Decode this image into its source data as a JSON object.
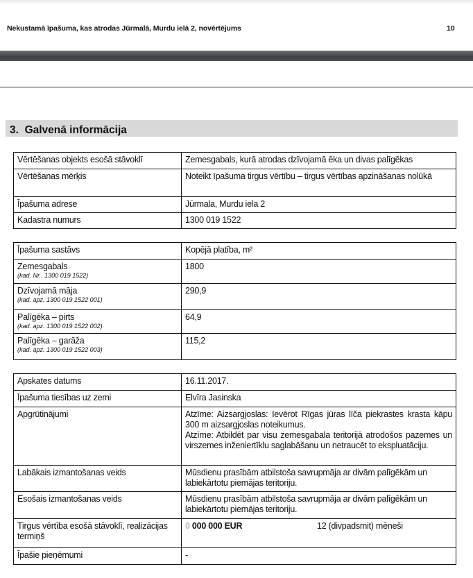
{
  "header": {
    "title": "Nekustamā īpašuma, kas atrodas Jūrmalā, Murdu ielā 2, novērtējums",
    "page_number": "10"
  },
  "section": {
    "number": "3.",
    "title": "Galvenā informācija"
  },
  "table1": [
    {
      "label": "Vērtēšanas objekts esošā stāvoklī",
      "value": "Zemesgabals, kurā atrodas dzīvojamā ēka un divas palīgēkas"
    },
    {
      "label": "Vērtēšanas mērķis",
      "value": "Noteikt īpašuma tirgus vērtību – tirgus vērtības apzināšanas nolūkā"
    },
    {
      "label": "Īpašuma adrese",
      "value": "Jūrmala, Murdu iela 2"
    },
    {
      "label": "Kadastra numurs",
      "value": "1300 019 1522"
    }
  ],
  "table2": {
    "header": {
      "label": "Īpašuma sastāvs",
      "value": "Kopējā platība, m²"
    },
    "rows": [
      {
        "label": "Zemesgabals",
        "sub": "(kad. Nr.. 1300 019 1522)",
        "value": "1800"
      },
      {
        "label": "Dzīvojamā māja",
        "sub": "(kad. apz. 1300 019 1522 001)",
        "value": "290,9"
      },
      {
        "label": "Palīgēka – pirts",
        "sub": "(kad. apz. 1300 019 1522 002)",
        "value": "64,9"
      },
      {
        "label": "Palīgēka – garāža",
        "sub": "(kad. apz. 1300 019 1522 003)",
        "value": "115,2"
      }
    ]
  },
  "table3": {
    "inspection_date": {
      "label": "Apskates datums",
      "value": "16.11.2017."
    },
    "land_rights": {
      "label": "Īpašuma tiesības uz zemi",
      "value": "Elvīra Jasinska"
    },
    "encumbrances": {
      "label": "Apgrūtinājumi",
      "value1": "Atzīme: Aizsargjoslas: Ievērot Rīgas jūras līča piekrastes krasta kāpu 300 m aizsargjoslas noteikumus.",
      "value2": "Atzīme: Atbildēt par visu zemesgabala teritorijā atrodošos pazemes un virszemes inženiertīklu saglabāšanu un netraucēt to ekspluatāciju."
    },
    "best_use": {
      "label": "Labākais izmantošanas veids",
      "value": "Mūsdienu prasībām atbilstoša savrupmāja ar divām palīgēkām un labiekārtotu piemājas teritoriju."
    },
    "current_use": {
      "label": "Esošais izmantošanas veids",
      "value": "Mūsdienu prasībām atbilstoša savrupmāja ar divām palīgēkām un labiekārtotu piemājas teritoriju."
    },
    "market_value": {
      "label": "Tirgus vērtība esošā stāvoklī, realizācijas termiņš",
      "value_first": "0",
      "value_rest": " 000 000 EUR",
      "term": "12 (divpadsmit) mēneši"
    },
    "assumptions": {
      "label": "Īpašie pieņēmumi",
      "value": "-"
    }
  }
}
